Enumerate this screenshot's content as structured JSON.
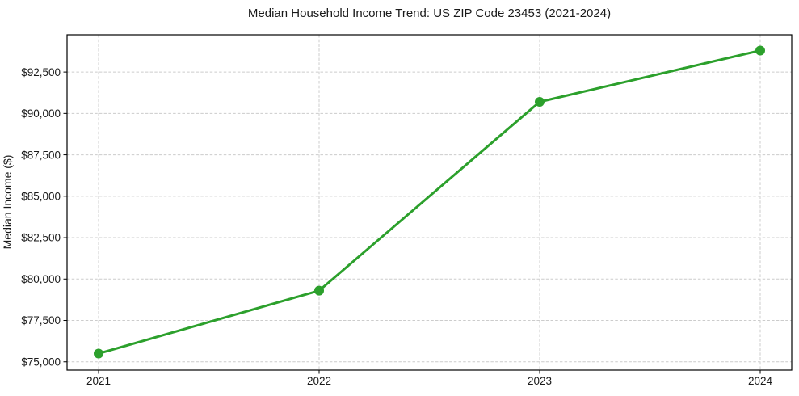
{
  "chart_data": {
    "type": "line",
    "title": "Median Household Income Trend: US ZIP Code 23453 (2021-2024)",
    "xlabel": "",
    "ylabel": "Median Income ($)",
    "categories": [
      "2021",
      "2022",
      "2023",
      "2024"
    ],
    "values": [
      75500,
      79300,
      90700,
      93800
    ],
    "yticks": [
      75000,
      77500,
      80000,
      82500,
      85000,
      87500,
      90000,
      92500
    ],
    "ytick_labels": [
      "$75,000",
      "$77,500",
      "$80,000",
      "$82,500",
      "$85,000",
      "$87,500",
      "$90,000",
      "$92,500"
    ],
    "ylim": [
      74500,
      94750
    ],
    "grid": true,
    "grid_style": "dashed",
    "legend_position": "none",
    "marker": "circle",
    "colors": {
      "line": "#2ca02c",
      "marker": "#2ca02c",
      "grid": "#cccccc",
      "axis": "#000000",
      "text": "#1a1a1a",
      "background": "#ffffff"
    }
  }
}
